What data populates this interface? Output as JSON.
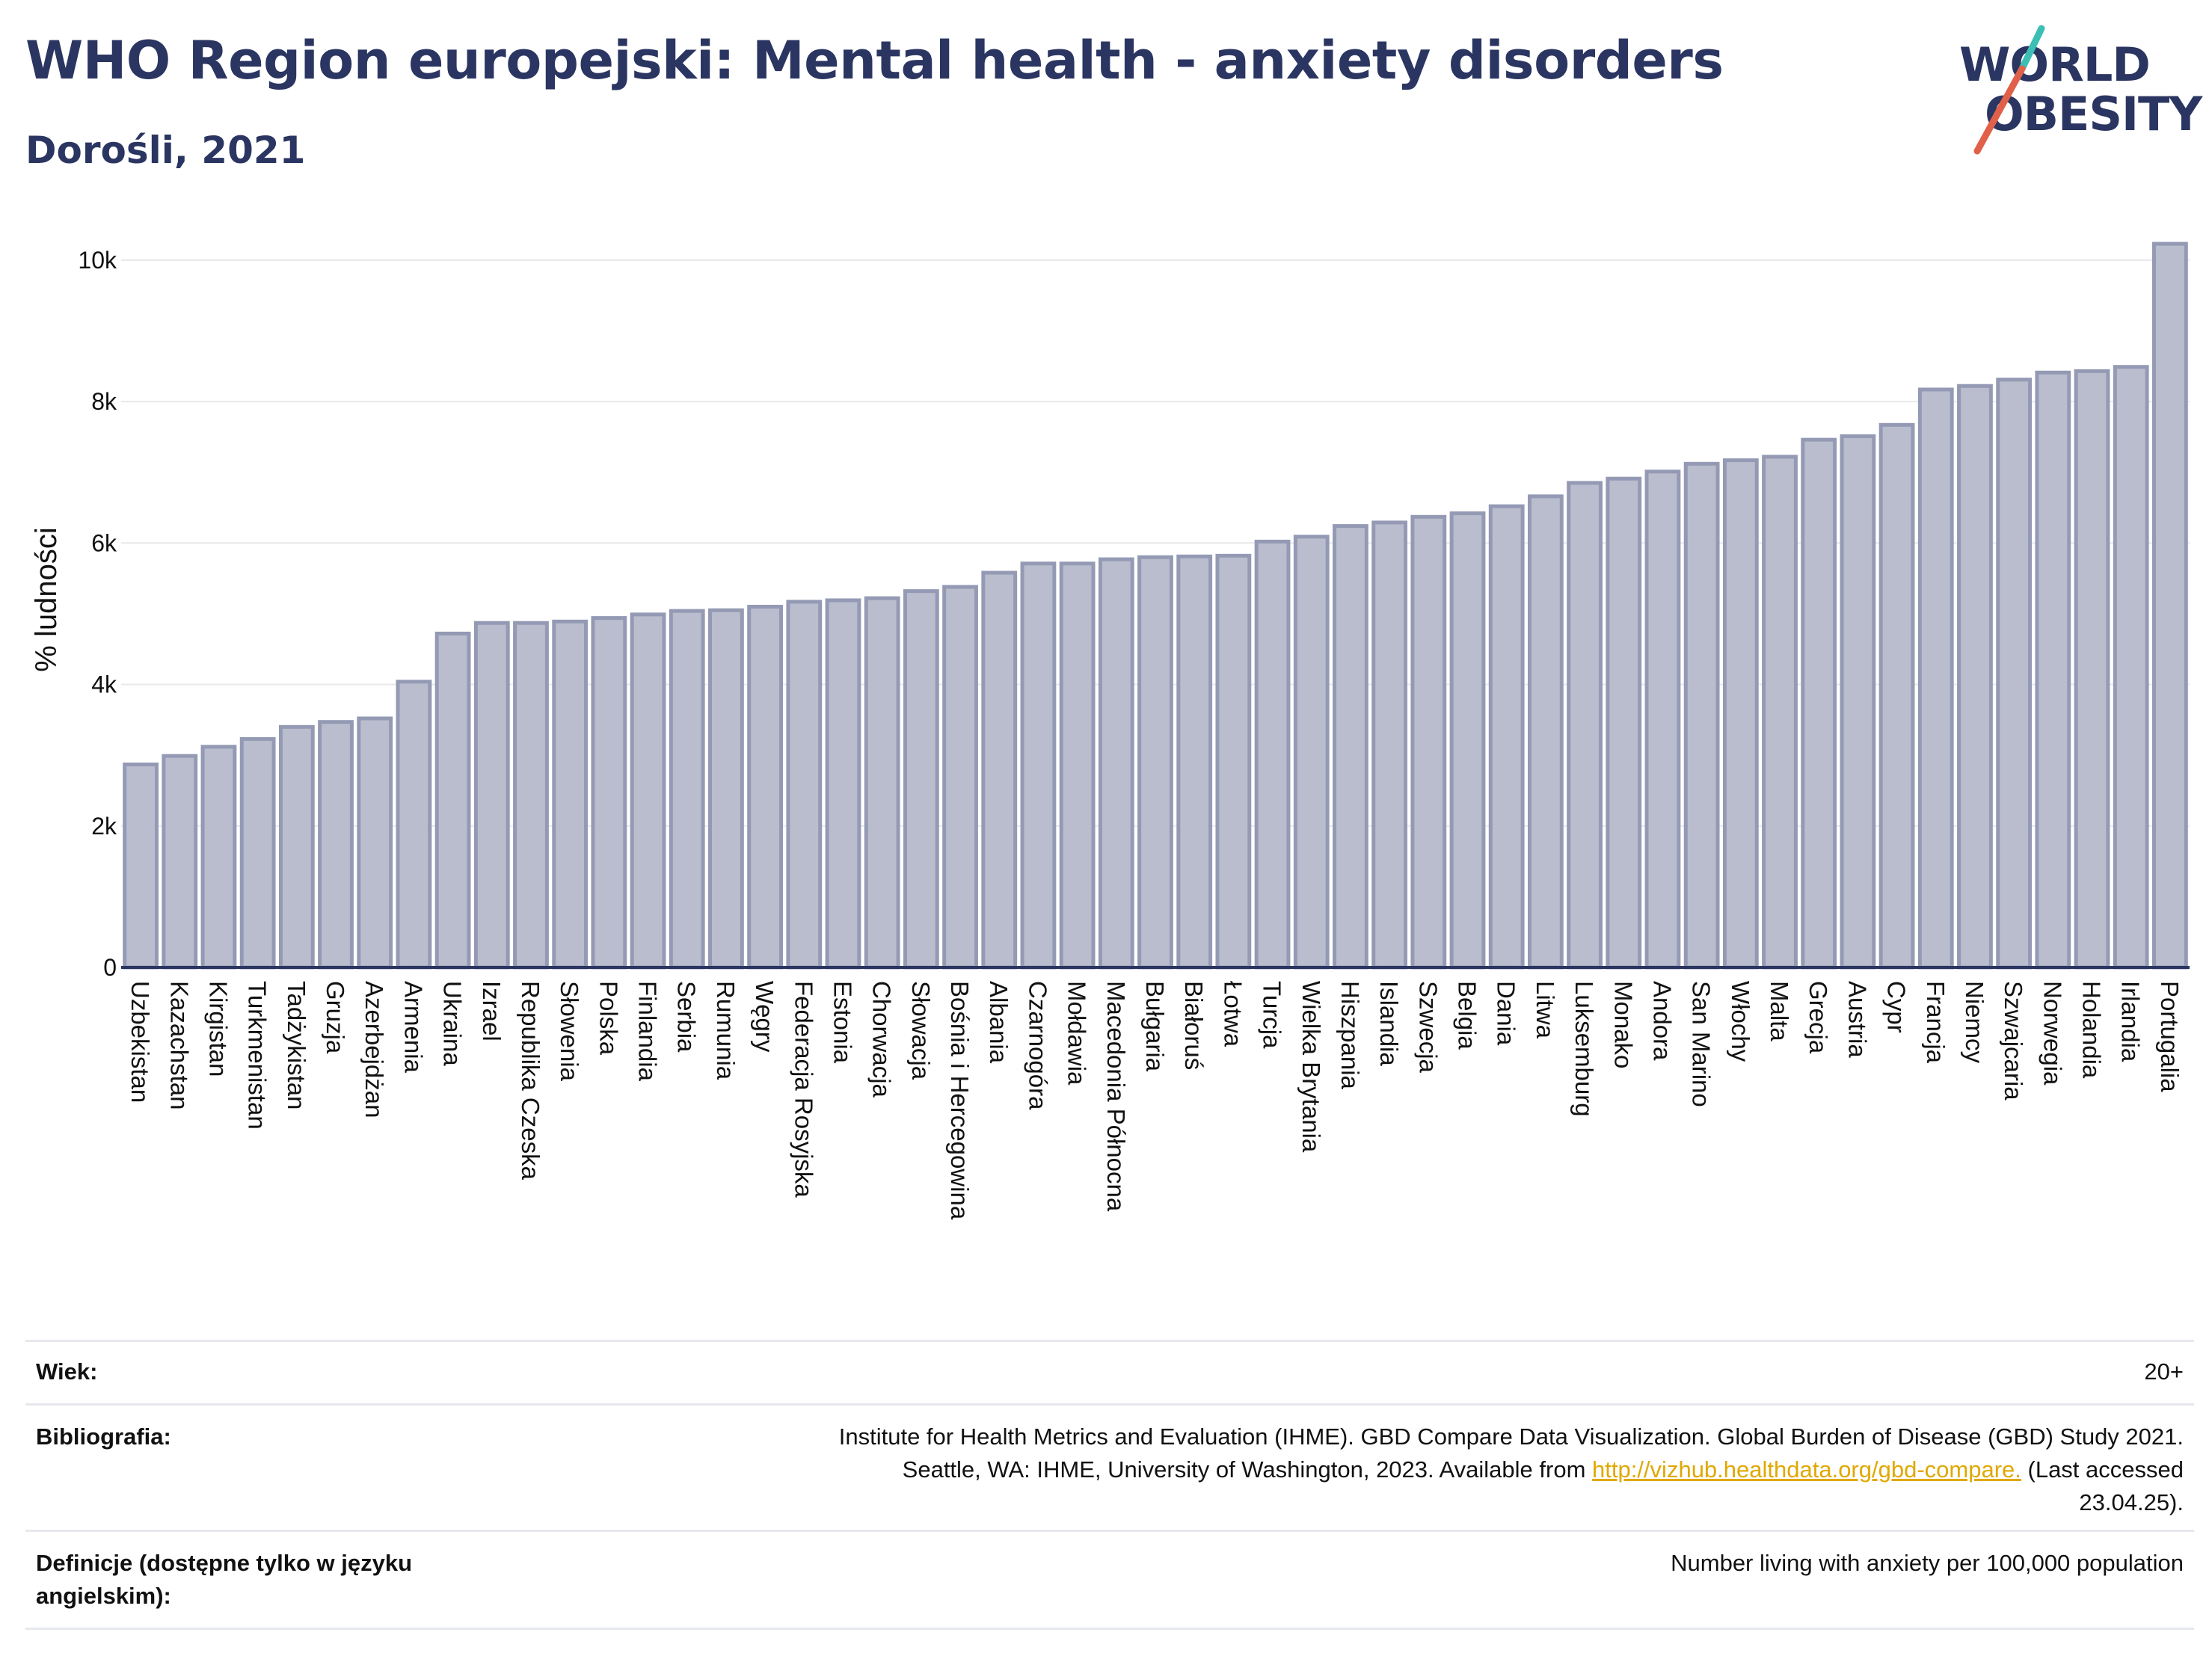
{
  "header": {
    "title": "WHO Region europejski: Mental health - anxiety disorders",
    "subtitle": "Dorośli, 2021"
  },
  "logo": {
    "line1": "WORLD",
    "line2": "OBESITY",
    "colors": {
      "text": "#2b3561",
      "slash_top": "#3bbfb4",
      "slash_bottom": "#e0604a"
    }
  },
  "colors": {
    "bar_fill": "#b9bdcd",
    "bar_stroke": "#949ab4",
    "axis": "#2b3561",
    "grid": "#e8e8ec"
  },
  "chart_data": {
    "type": "bar",
    "title": "WHO Region europejski: Mental health - anxiety disorders",
    "subtitle": "Dorośli, 2021",
    "xlabel": "",
    "ylabel": "% ludności",
    "ylim": [
      0,
      10400
    ],
    "yticks": [
      0,
      2000,
      4000,
      6000,
      8000,
      10000
    ],
    "ytick_labels": [
      "0",
      "2k",
      "4k",
      "6k",
      "8k",
      "10k"
    ],
    "grid": true,
    "categories": [
      "Uzbekistan",
      "Kazachstan",
      "Kirgistan",
      "Turkmenistan",
      "Tadżykistan",
      "Gruzja",
      "Azerbejdżan",
      "Armenia",
      "Ukraina",
      "Izrael",
      "Republika Czeska",
      "Słowenia",
      "Polska",
      "Finlandia",
      "Serbia",
      "Rumunia",
      "Węgry",
      "Federacja Rosyjska",
      "Estonia",
      "Chorwacja",
      "Słowacja",
      "Bośnia i Hercegowina",
      "Albania",
      "Czarnogóra",
      "Mołdawia",
      "Macedonia Północna",
      "Bułgaria",
      "Białoruś",
      "Łotwa",
      "Turcja",
      "Wielka Brytania",
      "Hiszpania",
      "Islandia",
      "Szwecja",
      "Belgia",
      "Dania",
      "Litwa",
      "Luksemburg",
      "Monako",
      "Andora",
      "San Marino",
      "Włochy",
      "Malta",
      "Grecja",
      "Austria",
      "Cypr",
      "Francja",
      "Niemcy",
      "Szwajcaria",
      "Norwegia",
      "Holandia",
      "Irlandia",
      "Portugalia"
    ],
    "values": [
      2870,
      2990,
      3120,
      3230,
      3400,
      3470,
      3520,
      4040,
      4720,
      4870,
      4870,
      4890,
      4940,
      4990,
      5040,
      5050,
      5100,
      5170,
      5190,
      5220,
      5320,
      5380,
      5580,
      5710,
      5710,
      5770,
      5800,
      5810,
      5820,
      6020,
      6090,
      6240,
      6290,
      6370,
      6420,
      6520,
      6660,
      6850,
      6910,
      7010,
      7120,
      7170,
      7220,
      7460,
      7510,
      7670,
      8170,
      8220,
      8310,
      8410,
      8430,
      8490,
      10230
    ]
  },
  "meta": {
    "age_label": "Wiek:",
    "age_value": "20+",
    "bib_label": "Bibliografia:",
    "bib_line1": "Institute for Health Metrics and Evaluation (IHME). GBD Compare Data Visualization. Global Burden of Disease (GBD) Study 2021.",
    "bib_line2_prefix": "Seattle, WA: IHME, University of Washington, 2023. Available from ",
    "bib_link": "http://vizhub.healthdata.org/gbd-compare.",
    "bib_line2_suffix": " (Last accessed",
    "bib_line3": "23.04.25).",
    "def_label": "Definicje (dostępne tylko w języku angielskim):",
    "def_value": "Number living with anxiety per 100,000 population"
  }
}
